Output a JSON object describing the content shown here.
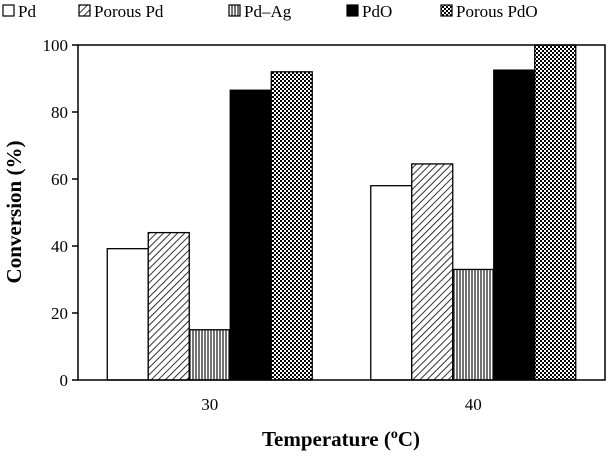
{
  "chart_data": {
    "type": "bar",
    "title": "",
    "xlabel": "Temperature (",
    "xlabel_sup": "o",
    "xlabel_tail": "C)",
    "ylabel": "Conversion (%)",
    "ylim": [
      0,
      100
    ],
    "yticks": [
      "0",
      "20",
      "40",
      "60",
      "80",
      "100"
    ],
    "grid": false,
    "legend_position": "top",
    "categories": [
      "30",
      "40"
    ],
    "series": [
      {
        "name": "Pd",
        "pattern": "white",
        "values": [
          39.2,
          58.0
        ]
      },
      {
        "name": "Porous Pd",
        "pattern": "diagonal-hatch",
        "values": [
          44.0,
          64.5
        ]
      },
      {
        "name": "Pd–Ag",
        "pattern": "vertical-lines",
        "values": [
          15.0,
          33.0
        ]
      },
      {
        "name": "PdO",
        "pattern": "black",
        "values": [
          86.5,
          92.5
        ]
      },
      {
        "name": "Porous PdO",
        "pattern": "crosshatch",
        "values": [
          92.0,
          100.0
        ]
      }
    ]
  }
}
